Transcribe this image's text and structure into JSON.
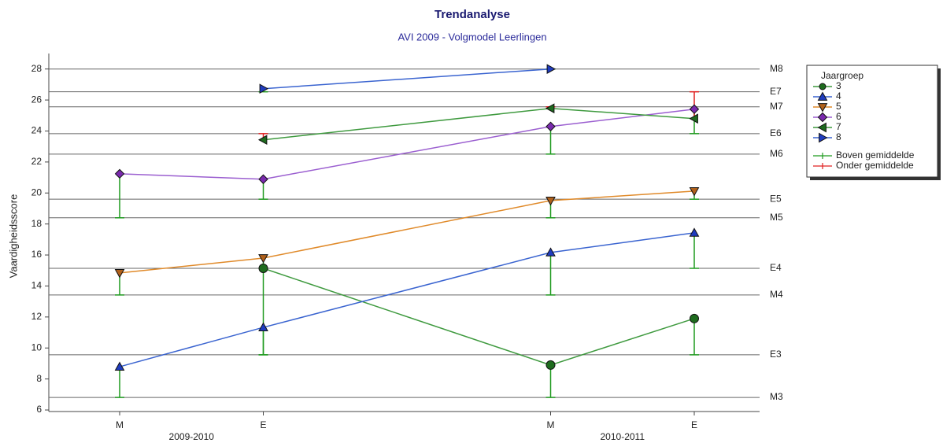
{
  "chart_data": {
    "type": "line",
    "title": "Trendanalyse",
    "subtitle": "AVI 2009 - Volgmodel Leerlingen",
    "y_label": "Vaardigheidsscore",
    "categories": [
      "M",
      "E",
      "M",
      "E"
    ],
    "groups": [
      {
        "label": "2009-2010",
        "categories": [
          0,
          1
        ]
      },
      {
        "label": "2010-2011",
        "categories": [
          2,
          3
        ]
      }
    ],
    "ylim": [
      5.9,
      29
    ],
    "yticks": [
      6,
      8,
      10,
      12,
      14,
      16,
      18,
      20,
      22,
      24,
      26,
      28
    ],
    "reference_lines": [
      {
        "label": "M8",
        "value": 28
      },
      {
        "label": "E7",
        "value": 26.53
      },
      {
        "label": "M7",
        "value": 25.56
      },
      {
        "label": "E6",
        "value": 23.83
      },
      {
        "label": "M6",
        "value": 22.51
      },
      {
        "label": "E5",
        "value": 19.6
      },
      {
        "label": "M5",
        "value": 18.4
      },
      {
        "label": "E4",
        "value": 15.14
      },
      {
        "label": "M4",
        "value": 13.42
      },
      {
        "label": "E3",
        "value": 9.56
      },
      {
        "label": "M3",
        "value": 6.81
      }
    ],
    "legend_title": "Jaargroep",
    "series": [
      {
        "name": "3",
        "color": "#3f9a3f",
        "marker_color": "#1e6b1e",
        "marker": "circle",
        "values": [
          null,
          15.14,
          8.9,
          11.9
        ],
        "norms": [
          null,
          9.56,
          6.81,
          9.56
        ]
      },
      {
        "name": "4",
        "color": "#3a64d0",
        "marker_color": "#1f3cbf",
        "marker": "triangle-up",
        "values": [
          8.79,
          11.33,
          16.16,
          17.43
        ],
        "norms": [
          6.81,
          9.56,
          13.42,
          15.14
        ]
      },
      {
        "name": "5",
        "color": "#e08a2a",
        "marker_color": "#b0601a",
        "marker": "triangle-down",
        "values": [
          14.84,
          15.8,
          19.51,
          20.12
        ],
        "norms": [
          13.42,
          15.14,
          18.4,
          19.6
        ]
      },
      {
        "name": "6",
        "color": "#9b5fd0",
        "marker_color": "#7a2aae",
        "marker": "diamond",
        "values": [
          21.24,
          20.89,
          24.29,
          25.41
        ],
        "norms": [
          18.4,
          19.6,
          22.51,
          23.83
        ]
      },
      {
        "name": "7",
        "color": "#3f9a3f",
        "marker_color": "#1e6b1e",
        "marker": "triangle-left",
        "values": [
          null,
          23.43,
          25.46,
          24.8
        ],
        "norms": [
          null,
          23.83,
          25.56,
          26.53
        ]
      },
      {
        "name": "8",
        "color": "#3a64d0",
        "marker_color": "#1f3cbf",
        "marker": "triangle-right",
        "values": [
          null,
          26.73,
          28.0,
          null
        ],
        "norms": [
          null,
          26.53,
          28.0,
          null
        ]
      }
    ],
    "error_bars": [
      {
        "name": "Boven gemiddelde",
        "color": "#1f9a1f"
      },
      {
        "name": "Onder gemiddelde",
        "color": "#e02020"
      }
    ]
  }
}
